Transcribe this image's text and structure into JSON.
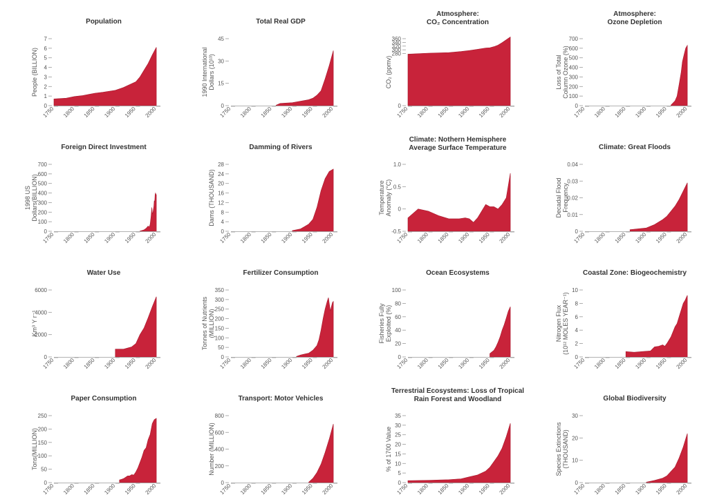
{
  "theme": {
    "fill": "#c8233a",
    "stroke": "#a81a2e",
    "axis": "#999999",
    "text": "#555555",
    "title": "#333333"
  },
  "x_ticks": [
    "1750",
    "1800",
    "1850",
    "1900",
    "1950",
    "2000"
  ],
  "chart_data": [
    {
      "type": "area",
      "title": [
        "Population"
      ],
      "ylabel": [
        "People (BILLION)"
      ],
      "yticks": [
        "0",
        "1",
        "2",
        "3",
        "4",
        "5",
        "6",
        "7"
      ],
      "ylim": [
        0,
        7
      ],
      "xlim": [
        1750,
        2010
      ],
      "points": [
        [
          1750,
          0.7
        ],
        [
          1760,
          0.73
        ],
        [
          1780,
          0.78
        ],
        [
          1800,
          0.95
        ],
        [
          1820,
          1.05
        ],
        [
          1850,
          1.3
        ],
        [
          1870,
          1.4
        ],
        [
          1900,
          1.6
        ],
        [
          1920,
          1.9
        ],
        [
          1930,
          2.1
        ],
        [
          1950,
          2.5
        ],
        [
          1960,
          3.0
        ],
        [
          1970,
          3.7
        ],
        [
          1980,
          4.4
        ],
        [
          1990,
          5.3
        ],
        [
          2000,
          6.1
        ]
      ]
    },
    {
      "type": "area",
      "title": [
        "Total Real GDP"
      ],
      "ylabel": [
        "1990 International",
        "Dollars (10¹³)"
      ],
      "yticks": [
        "0",
        "15",
        "30",
        "45"
      ],
      "ylim": [
        0,
        45
      ],
      "xlim": [
        1750,
        2010
      ],
      "points": [
        [
          1860,
          0.3
        ],
        [
          1870,
          1.5
        ],
        [
          1900,
          2
        ],
        [
          1920,
          3
        ],
        [
          1940,
          4
        ],
        [
          1950,
          5
        ],
        [
          1960,
          7
        ],
        [
          1970,
          10
        ],
        [
          1980,
          18
        ],
        [
          1990,
          27
        ],
        [
          2000,
          37
        ]
      ]
    },
    {
      "type": "area",
      "title": [
        "Atmosphere:",
        "CO₂ Concentration"
      ],
      "ylabel": [
        "CO₂ (ppmv)"
      ],
      "yticks": [
        "0",
        "280",
        "300",
        "320",
        "340",
        "360"
      ],
      "ylim": [
        0,
        360
      ],
      "xlim": [
        1750,
        2010
      ],
      "points": [
        [
          1750,
          277
        ],
        [
          1800,
          282
        ],
        [
          1850,
          285
        ],
        [
          1880,
          291
        ],
        [
          1900,
          296
        ],
        [
          1920,
          303
        ],
        [
          1940,
          310
        ],
        [
          1950,
          311
        ],
        [
          1960,
          317
        ],
        [
          1970,
          325
        ],
        [
          1980,
          339
        ],
        [
          1990,
          354
        ],
        [
          2000,
          369
        ]
      ]
    },
    {
      "type": "area",
      "title": [
        "Atmosphere:",
        "Ozone Depletion"
      ],
      "ylabel": [
        "Loss of Total",
        "Column Ozone (%)"
      ],
      "yticks": [
        "0",
        "100",
        "200",
        "300",
        "400",
        "500",
        "600",
        "700"
      ],
      "ylim": [
        0,
        700
      ],
      "xlim": [
        1750,
        2010
      ],
      "points": [
        [
          1960,
          5
        ],
        [
          1970,
          50
        ],
        [
          1975,
          100
        ],
        [
          1980,
          220
        ],
        [
          1985,
          350
        ],
        [
          1988,
          460
        ],
        [
          1992,
          530
        ],
        [
          1996,
          600
        ],
        [
          2000,
          630
        ]
      ]
    },
    {
      "type": "area",
      "title": [
        "Foreign Direct Investment"
      ],
      "ylabel": [
        "1998 US",
        "Dollars(BILLION)"
      ],
      "yticks": [
        "0",
        "100",
        "200",
        "300",
        "400",
        "500",
        "600",
        "700"
      ],
      "ylim": [
        0,
        700
      ],
      "xlim": [
        1750,
        2010
      ],
      "points": [
        [
          1960,
          2
        ],
        [
          1970,
          15
        ],
        [
          1975,
          30
        ],
        [
          1980,
          55
        ],
        [
          1983,
          45
        ],
        [
          1985,
          75
        ],
        [
          1987,
          150
        ],
        [
          1989,
          250
        ],
        [
          1990,
          200
        ],
        [
          1991,
          180
        ],
        [
          1992,
          200
        ],
        [
          1994,
          260
        ],
        [
          1995,
          320
        ],
        [
          1996,
          300
        ],
        [
          1997,
          380
        ],
        [
          1998,
          400
        ],
        [
          1999,
          390
        ],
        [
          2000,
          380
        ]
      ]
    },
    {
      "type": "area",
      "title": [
        "Damming of Rivers"
      ],
      "ylabel": [
        "Dams (THOUSAND)"
      ],
      "yticks": [
        "0",
        "4",
        "8",
        "12",
        "16",
        "20",
        "24",
        "28"
      ],
      "ylim": [
        0,
        28
      ],
      "xlim": [
        1750,
        2010
      ],
      "points": [
        [
          1900,
          0.3
        ],
        [
          1920,
          1
        ],
        [
          1930,
          2
        ],
        [
          1940,
          3
        ],
        [
          1950,
          5
        ],
        [
          1960,
          10
        ],
        [
          1970,
          17
        ],
        [
          1980,
          22
        ],
        [
          1990,
          25
        ],
        [
          2000,
          26
        ]
      ]
    },
    {
      "type": "area",
      "title": [
        "Climate: Nothern Hemisphere",
        "Average Surface Temperature"
      ],
      "ylabel": [
        "Temperature",
        "Anomaly (°C)"
      ],
      "yticks": [
        "-0.5",
        "0",
        "0.5",
        "1.0"
      ],
      "ylim": [
        -0.5,
        1.0
      ],
      "xlim": [
        1750,
        2010
      ],
      "points": [
        [
          1750,
          -0.2
        ],
        [
          1775,
          0.0
        ],
        [
          1800,
          -0.05
        ],
        [
          1825,
          -0.15
        ],
        [
          1850,
          -0.22
        ],
        [
          1875,
          -0.22
        ],
        [
          1890,
          -0.2
        ],
        [
          1900,
          -0.22
        ],
        [
          1910,
          -0.3
        ],
        [
          1920,
          -0.2
        ],
        [
          1930,
          -0.05
        ],
        [
          1940,
          0.1
        ],
        [
          1950,
          0.05
        ],
        [
          1960,
          0.05
        ],
        [
          1970,
          0.0
        ],
        [
          1980,
          0.1
        ],
        [
          1990,
          0.25
        ],
        [
          2000,
          0.8
        ]
      ]
    },
    {
      "type": "area",
      "title": [
        "Climate: Great Floods"
      ],
      "ylabel": [
        "Decadal Flood",
        "Frequency"
      ],
      "yticks": [
        "0",
        "0.01",
        "0.02",
        "0.03",
        "0.04"
      ],
      "ylim": [
        0,
        0.04
      ],
      "xlim": [
        1750,
        2010
      ],
      "points": [
        [
          1860,
          0.001
        ],
        [
          1880,
          0.0015
        ],
        [
          1900,
          0.002
        ],
        [
          1920,
          0.004
        ],
        [
          1940,
          0.007
        ],
        [
          1950,
          0.009
        ],
        [
          1960,
          0.012
        ],
        [
          1970,
          0.015
        ],
        [
          1980,
          0.019
        ],
        [
          1990,
          0.024
        ],
        [
          2000,
          0.029
        ]
      ]
    },
    {
      "type": "area",
      "title": [
        "Water Use"
      ],
      "ylabel": [
        "Km³ Y r⁻¹"
      ],
      "yticks": [
        "0",
        "2000",
        "4000",
        "6000"
      ],
      "ylim": [
        0,
        6000
      ],
      "xlim": [
        1750,
        2010
      ],
      "points": [
        [
          1900,
          700
        ],
        [
          1920,
          700
        ],
        [
          1930,
          800
        ],
        [
          1940,
          900
        ],
        [
          1950,
          1200
        ],
        [
          1960,
          2000
        ],
        [
          1970,
          2600
        ],
        [
          1980,
          3500
        ],
        [
          1990,
          4500
        ],
        [
          2000,
          5400
        ]
      ]
    },
    {
      "type": "area",
      "title": [
        "Fertilizer Consumption"
      ],
      "ylabel": [
        "Tonnes of Nutrients",
        "(MILLION)"
      ],
      "yticks": [
        "0",
        "50",
        "100",
        "150",
        "200",
        "250",
        "300",
        "350"
      ],
      "ylim": [
        0,
        350
      ],
      "xlim": [
        1750,
        2010
      ],
      "points": [
        [
          1910,
          3
        ],
        [
          1920,
          10
        ],
        [
          1930,
          15
        ],
        [
          1940,
          20
        ],
        [
          1950,
          35
        ],
        [
          1960,
          60
        ],
        [
          1965,
          90
        ],
        [
          1970,
          140
        ],
        [
          1975,
          200
        ],
        [
          1980,
          250
        ],
        [
          1985,
          290
        ],
        [
          1988,
          310
        ],
        [
          1990,
          280
        ],
        [
          1993,
          240
        ],
        [
          1995,
          260
        ],
        [
          1998,
          285
        ],
        [
          2000,
          290
        ]
      ]
    },
    {
      "type": "area",
      "title": [
        "Ocean Ecosystems"
      ],
      "ylabel": [
        "Fisheries Fully",
        "Exploited (%)"
      ],
      "yticks": [
        "0",
        "20",
        "40",
        "60",
        "80",
        "100"
      ],
      "ylim": [
        0,
        100
      ],
      "xlim": [
        1750,
        2010
      ],
      "points": [
        [
          1950,
          5
        ],
        [
          1960,
          10
        ],
        [
          1965,
          15
        ],
        [
          1970,
          22
        ],
        [
          1975,
          30
        ],
        [
          1980,
          40
        ],
        [
          1985,
          48
        ],
        [
          1990,
          58
        ],
        [
          1995,
          68
        ],
        [
          2000,
          75
        ]
      ]
    },
    {
      "type": "area",
      "title": [
        "Coastal Zone: Biogeochemistry"
      ],
      "ylabel": [
        "Nitrogen Flux",
        "(10¹² MOLES YEAR⁻¹)"
      ],
      "yticks": [
        "0",
        "2",
        "4",
        "6",
        "8",
        "10"
      ],
      "ylim": [
        0,
        10
      ],
      "xlim": [
        1750,
        2010
      ],
      "points": [
        [
          1850,
          0.8
        ],
        [
          1870,
          0.7
        ],
        [
          1890,
          0.8
        ],
        [
          1910,
          0.9
        ],
        [
          1920,
          1.5
        ],
        [
          1930,
          1.6
        ],
        [
          1940,
          1.8
        ],
        [
          1945,
          1.6
        ],
        [
          1950,
          2.0
        ],
        [
          1960,
          3.0
        ],
        [
          1970,
          4.5
        ],
        [
          1975,
          5.0
        ],
        [
          1980,
          6.0
        ],
        [
          1985,
          7.0
        ],
        [
          1990,
          8.0
        ],
        [
          1995,
          8.5
        ],
        [
          2000,
          9.2
        ]
      ]
    },
    {
      "type": "area",
      "title": [
        "Paper Consumption"
      ],
      "ylabel": [
        "Tons(MILLION)"
      ],
      "yticks": [
        "0",
        "50",
        "100",
        "150",
        "200",
        "250"
      ],
      "ylim": [
        0,
        250
      ],
      "xlim": [
        1750,
        2010
      ],
      "points": [
        [
          1910,
          10
        ],
        [
          1915,
          12
        ],
        [
          1920,
          15
        ],
        [
          1925,
          20
        ],
        [
          1930,
          25
        ],
        [
          1935,
          25
        ],
        [
          1940,
          30
        ],
        [
          1945,
          28
        ],
        [
          1950,
          40
        ],
        [
          1955,
          55
        ],
        [
          1960,
          75
        ],
        [
          1965,
          95
        ],
        [
          1970,
          120
        ],
        [
          1975,
          130
        ],
        [
          1980,
          160
        ],
        [
          1985,
          180
        ],
        [
          1990,
          220
        ],
        [
          1995,
          235
        ],
        [
          2000,
          240
        ]
      ]
    },
    {
      "type": "area",
      "title": [
        "Transport: Motor Vehicles"
      ],
      "ylabel": [
        "Number (MILLION)"
      ],
      "yticks": [
        "0",
        "200",
        "400",
        "600",
        "800"
      ],
      "ylim": [
        0,
        800
      ],
      "xlim": [
        1750,
        2010
      ],
      "points": [
        [
          1940,
          5
        ],
        [
          1950,
          50
        ],
        [
          1960,
          120
        ],
        [
          1970,
          220
        ],
        [
          1980,
          360
        ],
        [
          1990,
          520
        ],
        [
          2000,
          700
        ]
      ]
    },
    {
      "type": "area",
      "title": [
        "Terrestrial Ecosystems: Loss of Tropical",
        "Rain Forest and Woodland"
      ],
      "ylabel": [
        "% of 1700 Value"
      ],
      "yticks": [
        "0",
        "5",
        "10",
        "15",
        "20",
        "25",
        "30",
        "35"
      ],
      "ylim": [
        0,
        35
      ],
      "xlim": [
        1750,
        2010
      ],
      "points": [
        [
          1750,
          1
        ],
        [
          1800,
          1.2
        ],
        [
          1850,
          1.5
        ],
        [
          1880,
          2
        ],
        [
          1900,
          3
        ],
        [
          1920,
          4
        ],
        [
          1940,
          6
        ],
        [
          1950,
          8
        ],
        [
          1960,
          11
        ],
        [
          1970,
          14
        ],
        [
          1980,
          18
        ],
        [
          1990,
          24
        ],
        [
          2000,
          31
        ]
      ]
    },
    {
      "type": "area",
      "title": [
        "Global Biodiversity"
      ],
      "ylabel": [
        "Species Extinctions",
        "(THOUSAND)"
      ],
      "yticks": [
        "0",
        "10",
        "20",
        "30"
      ],
      "ylim": [
        0,
        30
      ],
      "xlim": [
        1750,
        2010
      ],
      "points": [
        [
          1900,
          0.2
        ],
        [
          1920,
          1
        ],
        [
          1940,
          2
        ],
        [
          1950,
          3
        ],
        [
          1960,
          5
        ],
        [
          1970,
          7
        ],
        [
          1980,
          11
        ],
        [
          1990,
          16
        ],
        [
          2000,
          22
        ]
      ]
    }
  ]
}
